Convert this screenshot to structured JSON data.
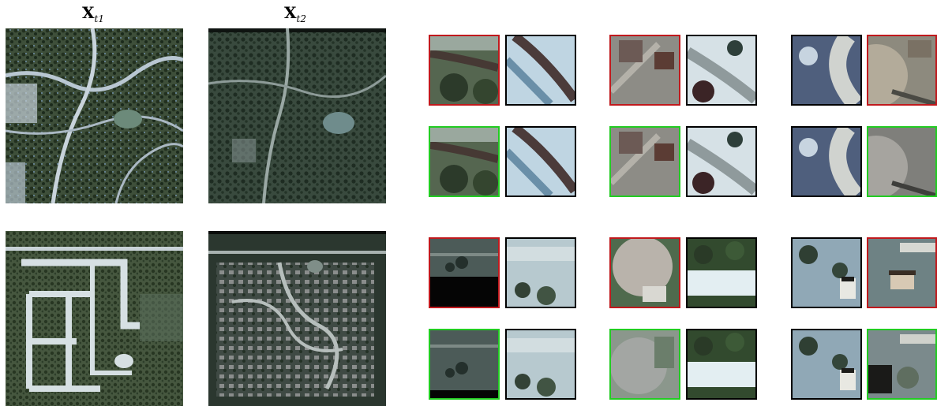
{
  "figure": {
    "column_labels": [
      {
        "main": "X",
        "sub": "t1"
      },
      {
        "main": "X",
        "sub": "t2"
      }
    ],
    "colors": {
      "red_border": "#c0191d",
      "green_border": "#22cc22",
      "black_border": "#000000"
    }
  }
}
